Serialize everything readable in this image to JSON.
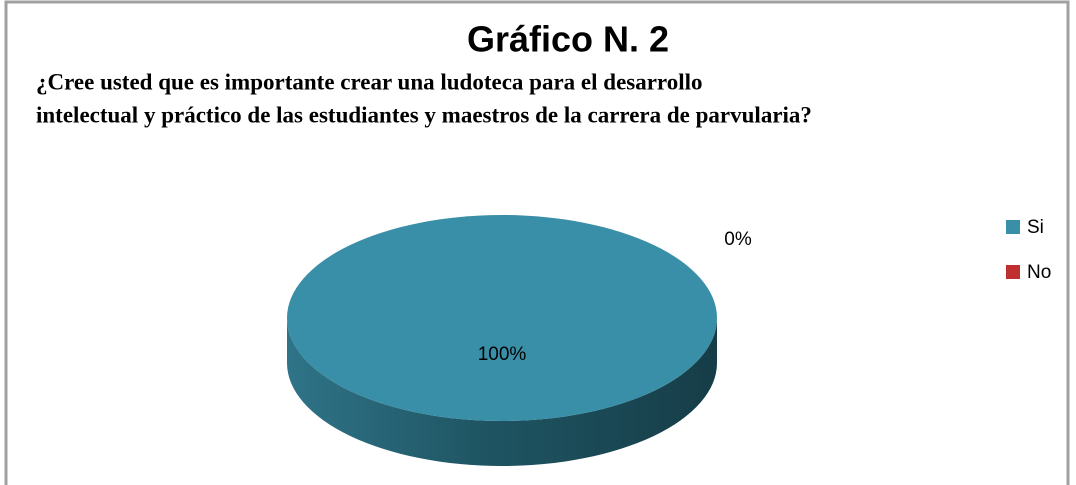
{
  "chart_data": {
    "type": "pie",
    "title": "Gráfico N. 2",
    "subtitle": [
      "¿Cree  usted que es importante crear una ludoteca para el desarrollo",
      "intelectual y práctico de las estudiantes y maestros de la carrera de parvularia?"
    ],
    "categories": [
      "Si",
      "No"
    ],
    "values": [
      100,
      0
    ],
    "value_labels": [
      "100%",
      "0%"
    ],
    "colors": [
      "#3a8fa8",
      "#c0302f"
    ],
    "legend": "right"
  }
}
